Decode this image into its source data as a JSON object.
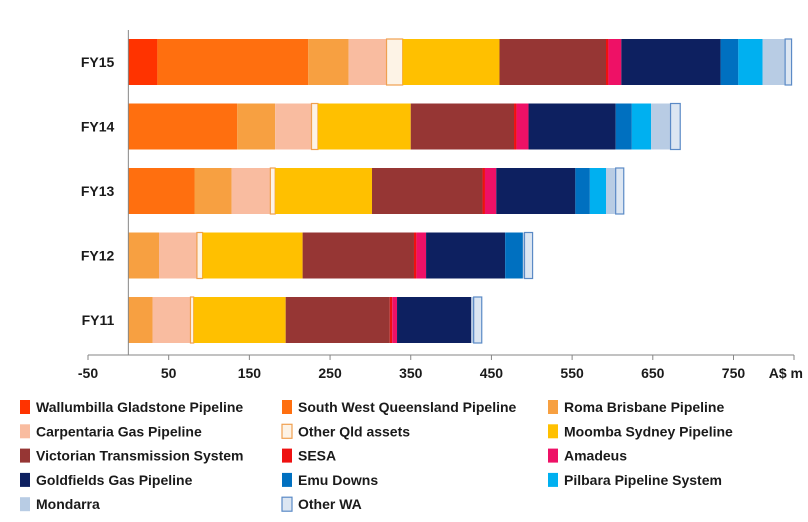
{
  "chart_data": {
    "type": "bar",
    "orientation": "horizontal",
    "stacked": true,
    "categories": [
      "FY15",
      "FY14",
      "FY13",
      "FY12",
      "FY11"
    ],
    "xlim": [
      -50,
      825
    ],
    "xticks": [
      -50,
      50,
      150,
      250,
      350,
      450,
      550,
      650,
      750
    ],
    "xtick_labels": [
      "-50",
      "50",
      "150",
      "250",
      "350",
      "450",
      "550",
      "650",
      "750"
    ],
    "xunit_label": "A$ m",
    "grid": false,
    "legend_position": "bottom",
    "series": [
      {
        "name": "Wallumbilla Gladstone Pipeline",
        "color": "#ff3300",
        "values": [
          36,
          0,
          0,
          0,
          0
        ]
      },
      {
        "name": "South West Queensland Pipeline",
        "color": "#ff6f0f",
        "values": [
          187,
          135,
          82,
          0,
          0
        ]
      },
      {
        "name": "Roma Brisbane Pipeline",
        "color": "#f7a041",
        "values": [
          50,
          47,
          46,
          38,
          30
        ]
      },
      {
        "name": "Carpentaria Gas Pipeline",
        "color": "#f9bca0",
        "values": [
          47,
          45,
          48,
          47,
          47
        ]
      },
      {
        "name": "Other Qld assets",
        "color": "#fdf3e6",
        "values": [
          20,
          8,
          6,
          7,
          4
        ]
      },
      {
        "name": "Moomba Sydney Pipeline",
        "color": "#ffc000",
        "values": [
          120,
          115,
          120,
          124,
          114
        ]
      },
      {
        "name": "Victorian Transmission System",
        "color": "#963634",
        "values": [
          132,
          128,
          137,
          138,
          129
        ]
      },
      {
        "name": "SESA",
        "color": "#ee1111",
        "values": [
          3,
          3,
          3,
          3,
          3
        ]
      },
      {
        "name": "Amadeus",
        "color": "#ee1166",
        "values": [
          16,
          15,
          14,
          12,
          6
        ]
      },
      {
        "name": "Goldfields Gas Pipeline",
        "color": "#0d2060",
        "values": [
          123,
          108,
          98,
          98,
          92
        ]
      },
      {
        "name": "Emu Downs",
        "color": "#0070c0",
        "values": [
          22,
          20,
          18,
          22,
          0
        ]
      },
      {
        "name": "Pilbara Pipeline System",
        "color": "#00b0f0",
        "values": [
          30,
          24,
          20,
          0,
          0
        ]
      },
      {
        "name": "Mondarra",
        "color": "#b8cce4",
        "values": [
          28,
          24,
          12,
          2,
          3
        ]
      },
      {
        "name": "Other WA",
        "color": "#dce6f2",
        "values": [
          8,
          12,
          10,
          10,
          10
        ]
      }
    ]
  }
}
